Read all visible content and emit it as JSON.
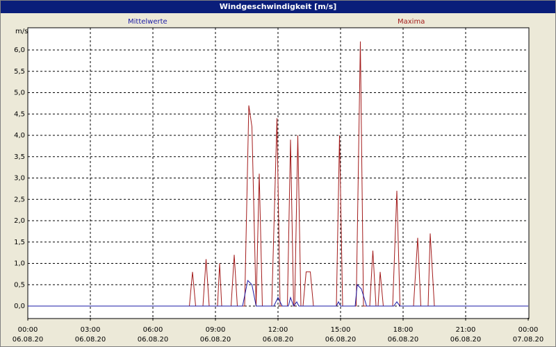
{
  "window": {
    "title": "Windgeschwindigkeit [m/s]"
  },
  "chart_data": {
    "type": "line",
    "title": "Windgeschwindigkeit [m/s]",
    "ylabel": "m/s",
    "xlabel": "",
    "ylim": [
      -0.35,
      6.5
    ],
    "xlim_hours": [
      0,
      24
    ],
    "grid": true,
    "yticks": [
      "6,0",
      "5,5",
      "5,0",
      "4,5",
      "4,0",
      "3,5",
      "3,0",
      "2,5",
      "2,0",
      "1,5",
      "1,0",
      "0,5",
      "0,0"
    ],
    "xticks": [
      {
        "time": "00:00",
        "date": "06.08.20"
      },
      {
        "time": "03:00",
        "date": "06.08.20"
      },
      {
        "time": "06:00",
        "date": "06.08.20"
      },
      {
        "time": "09:00",
        "date": "06.08.20"
      },
      {
        "time": "12:00",
        "date": "06.08.20"
      },
      {
        "time": "15:00",
        "date": "06.08.20"
      },
      {
        "time": "18:00",
        "date": "06.08.20"
      },
      {
        "time": "21:00",
        "date": "06.08.20"
      },
      {
        "time": "00:00",
        "date": "07.08.20"
      }
    ],
    "series": [
      {
        "name": "Mittelwerte",
        "color": "#1a1aa6",
        "x": [
          0,
          10.3,
          10.55,
          10.75,
          10.95,
          11.8,
          12.0,
          12.2,
          12.5,
          12.6,
          12.75,
          12.9,
          13.0,
          14.8,
          14.9,
          15.0,
          15.7,
          15.8,
          16.0,
          16.25,
          17.55,
          17.7,
          17.85,
          24.0
        ],
        "y": [
          0,
          0,
          0.6,
          0.5,
          0,
          0,
          0.2,
          0,
          0,
          0.2,
          0,
          0.1,
          0,
          0,
          0.1,
          0,
          0,
          0.5,
          0.4,
          0,
          0,
          0.1,
          0,
          0
        ]
      },
      {
        "name": "Maxima",
        "color": "#a21a1a",
        "x": [
          0,
          7.75,
          7.9,
          8.05,
          8.4,
          8.55,
          8.7,
          9.1,
          9.2,
          9.3,
          9.75,
          9.9,
          10.05,
          10.4,
          10.6,
          10.75,
          10.95,
          11.1,
          11.25,
          11.7,
          11.95,
          12.1,
          12.45,
          12.6,
          12.75,
          12.8,
          12.95,
          13.1,
          13.2,
          13.35,
          13.55,
          13.7,
          14.8,
          14.95,
          15.1,
          15.75,
          15.95,
          16.1,
          16.4,
          16.55,
          16.7,
          16.8,
          16.9,
          17.05,
          17.5,
          17.7,
          17.85,
          18.5,
          18.7,
          18.85,
          19.2,
          19.3,
          19.5,
          24.0
        ],
        "y": [
          0,
          0,
          0.8,
          0,
          0,
          1.1,
          0,
          0,
          1.0,
          0,
          0,
          1.2,
          0,
          0,
          4.7,
          4.2,
          0,
          3.1,
          0,
          0,
          4.4,
          0,
          0,
          3.9,
          0,
          0,
          4.0,
          0,
          0,
          0.8,
          0.8,
          0,
          0,
          4.0,
          0,
          0,
          6.2,
          0,
          0,
          1.3,
          0,
          0,
          0.8,
          0,
          0,
          2.7,
          0,
          0,
          1.6,
          0,
          0,
          1.7,
          0,
          0
        ]
      }
    ]
  }
}
